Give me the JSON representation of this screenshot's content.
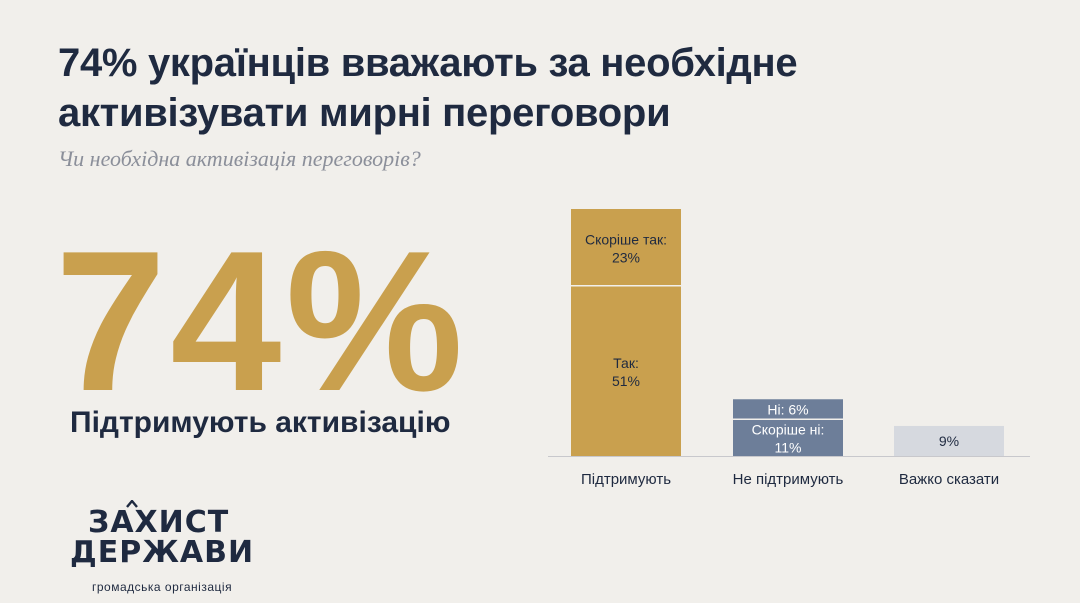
{
  "header": {
    "title_line1": "74% українців вважають за необхідне",
    "title_line2": "активізувати мирні переговори",
    "subtitle": "Чи необхідна активізація переговорів?"
  },
  "highlight": {
    "value": "74%",
    "label": "Підтримують активізацію"
  },
  "logo": {
    "line1": "ЗАХИСТ",
    "line2": "ДЕРЖАВИ",
    "line3": "громадська організація"
  },
  "colors": {
    "gold": "#c9a04e",
    "navy": "#1f2a40",
    "slate": "#6d7e99",
    "light_gray": "#d6d9df",
    "background": "#f1efeb"
  },
  "chart_data": {
    "type": "bar",
    "stacked": true,
    "categories": [
      "Підтримують",
      "Не підтримують",
      "Важко сказати"
    ],
    "stacks": [
      [
        {
          "label": "Так: 51%",
          "value": 51,
          "color": "#c9a04e"
        },
        {
          "label": "Скоріше так: 23%",
          "value": 23,
          "color": "#c9a04e"
        }
      ],
      [
        {
          "label": "Скоріше ні: 11%",
          "value": 11,
          "color": "#6d7e99"
        },
        {
          "label": "Ні: 6%",
          "value": 6,
          "color": "#6d7e99"
        }
      ],
      [
        {
          "label": "9%",
          "value": 9,
          "color": "#d6d9df"
        }
      ]
    ],
    "ylim": [
      0,
      74
    ],
    "grid": false,
    "legend": "none"
  }
}
